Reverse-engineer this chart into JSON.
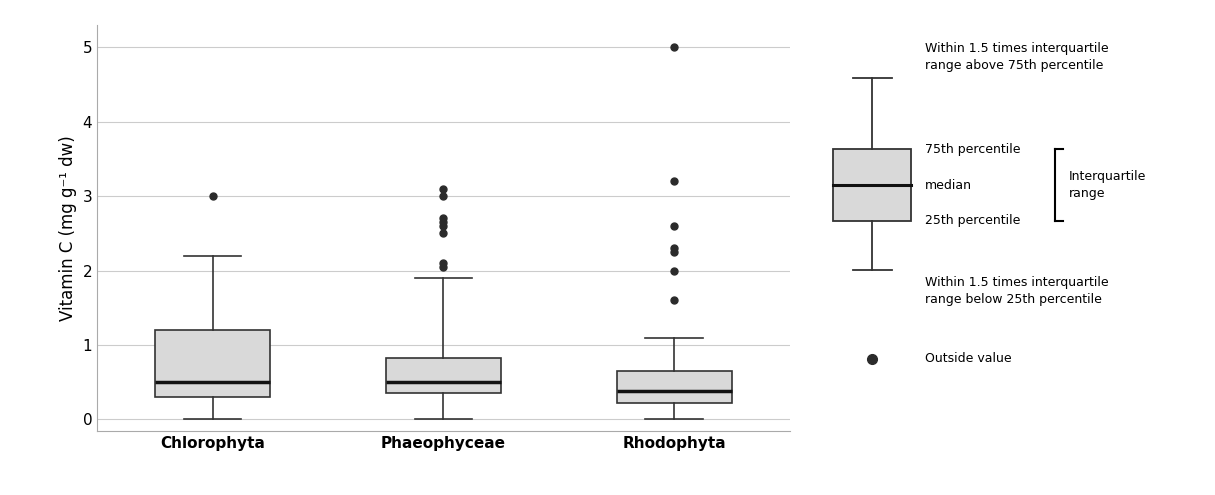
{
  "categories": [
    "Chlorophyta",
    "Phaeophyceae",
    "Rhodophyta"
  ],
  "box_stats": {
    "Chlorophyta": {
      "q1": 0.3,
      "median": 0.5,
      "q3": 1.2,
      "whislo": 0.0,
      "whishi": 2.2,
      "fliers": [
        3.0
      ]
    },
    "Phaeophyceae": {
      "q1": 0.35,
      "median": 0.5,
      "q3": 0.83,
      "whislo": 0.0,
      "whishi": 1.9,
      "fliers": [
        2.05,
        2.1,
        2.5,
        2.6,
        2.65,
        2.7,
        3.0,
        3.1
      ]
    },
    "Rhodophyta": {
      "q1": 0.22,
      "median": 0.38,
      "q3": 0.65,
      "whislo": 0.0,
      "whishi": 1.1,
      "fliers": [
        1.6,
        2.0,
        2.25,
        2.3,
        2.6,
        3.2,
        5.0
      ]
    }
  },
  "ylabel": "Vitamin C (mg g⁻¹ dw)",
  "ylim": [
    -0.15,
    5.3
  ],
  "yticks": [
    0,
    1,
    2,
    3,
    4,
    5
  ],
  "box_facecolor": "#d9d9d9",
  "box_edgecolor": "#333333",
  "median_color": "#111111",
  "whisker_color": "#333333",
  "flier_color": "#2b2b2b",
  "grid_color": "#cccccc",
  "background_color": "#ffffff",
  "label_fontsize": 12,
  "tick_fontsize": 11,
  "box_width": 0.5
}
